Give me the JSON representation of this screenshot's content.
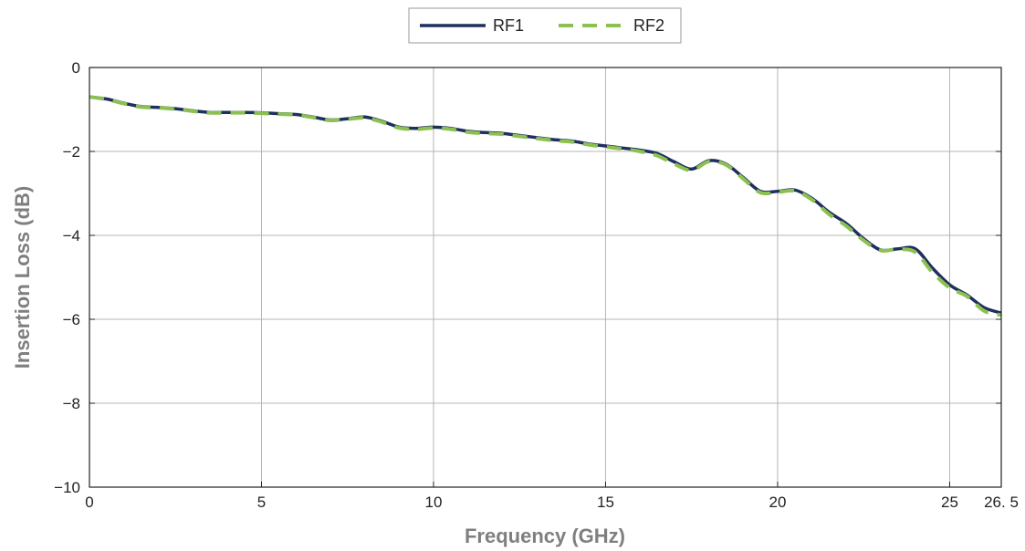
{
  "chart_data": {
    "type": "line",
    "xlabel": "Frequency (GHz)",
    "ylabel": "Insertion Loss (dB)",
    "xlim": [
      0,
      26.5
    ],
    "ylim": [
      -10,
      0
    ],
    "xticks": [
      0,
      5,
      10,
      15,
      20,
      25,
      26.5
    ],
    "xtick_labels": [
      "0",
      "5",
      "10",
      "15",
      "20",
      "25",
      "26. 5"
    ],
    "yticks": [
      0,
      -2,
      -4,
      -6,
      -8,
      -10
    ],
    "ytick_labels": [
      "0",
      "−2",
      "−4",
      "−6",
      "−8",
      "−10"
    ],
    "grid": true,
    "legend_position": "top-center",
    "series": [
      {
        "name": "RF1",
        "color": "#1f2f5e",
        "style": "solid",
        "x": [
          0,
          0.5,
          1,
          1.5,
          2,
          2.5,
          3,
          3.5,
          4,
          4.5,
          5,
          5.5,
          6,
          6.5,
          7,
          7.5,
          8,
          8.5,
          9,
          9.5,
          10,
          10.5,
          11,
          11.5,
          12,
          12.5,
          13,
          13.5,
          14,
          14.5,
          15,
          15.5,
          16,
          16.5,
          17,
          17.5,
          18,
          18.5,
          19,
          19.5,
          20,
          20.5,
          21,
          21.5,
          22,
          22.5,
          23,
          23.5,
          24,
          24.5,
          25,
          25.5,
          26,
          26.5
        ],
        "y": [
          -0.7,
          -0.75,
          -0.85,
          -0.93,
          -0.95,
          -0.98,
          -1.03,
          -1.07,
          -1.07,
          -1.07,
          -1.08,
          -1.1,
          -1.12,
          -1.18,
          -1.25,
          -1.22,
          -1.18,
          -1.28,
          -1.42,
          -1.45,
          -1.42,
          -1.45,
          -1.52,
          -1.55,
          -1.57,
          -1.62,
          -1.67,
          -1.72,
          -1.75,
          -1.82,
          -1.87,
          -1.92,
          -1.97,
          -2.05,
          -2.25,
          -2.42,
          -2.22,
          -2.3,
          -2.62,
          -2.95,
          -2.95,
          -2.92,
          -3.12,
          -3.45,
          -3.72,
          -4.08,
          -4.35,
          -4.32,
          -4.32,
          -4.78,
          -5.18,
          -5.42,
          -5.72,
          -5.85
        ]
      },
      {
        "name": "RF2",
        "color": "#8cc152",
        "style": "dashed",
        "x": [
          0,
          0.5,
          1,
          1.5,
          2,
          2.5,
          3,
          3.5,
          4,
          4.5,
          5,
          5.5,
          6,
          6.5,
          7,
          7.5,
          8,
          8.5,
          9,
          9.5,
          10,
          10.5,
          11,
          11.5,
          12,
          12.5,
          13,
          13.5,
          14,
          14.5,
          15,
          15.5,
          16,
          16.5,
          17,
          17.5,
          18,
          18.5,
          19,
          19.5,
          20,
          20.5,
          21,
          21.5,
          22,
          22.5,
          23,
          23.5,
          24,
          24.5,
          25,
          25.5,
          26,
          26.5
        ],
        "y": [
          -0.7,
          -0.76,
          -0.86,
          -0.94,
          -0.96,
          -0.99,
          -1.04,
          -1.08,
          -1.08,
          -1.08,
          -1.09,
          -1.11,
          -1.13,
          -1.19,
          -1.26,
          -1.23,
          -1.2,
          -1.3,
          -1.44,
          -1.47,
          -1.44,
          -1.47,
          -1.54,
          -1.57,
          -1.59,
          -1.64,
          -1.69,
          -1.74,
          -1.77,
          -1.84,
          -1.89,
          -1.94,
          -2.0,
          -2.1,
          -2.3,
          -2.45,
          -2.24,
          -2.32,
          -2.65,
          -2.98,
          -2.97,
          -2.94,
          -3.15,
          -3.5,
          -3.78,
          -4.12,
          -4.36,
          -4.33,
          -4.4,
          -4.88,
          -5.25,
          -5.45,
          -5.8,
          -5.9
        ]
      }
    ]
  },
  "colors": {
    "grid": "#b5b5b5",
    "axis": "#222222",
    "axis_title": "#7f7f7f",
    "legend_border": "#9a9a9a"
  }
}
